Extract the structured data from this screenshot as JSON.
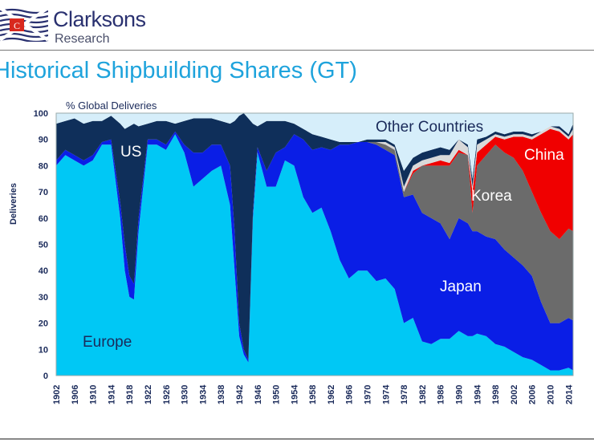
{
  "header": {
    "brand": "Clarksons",
    "brand_sub": "Research",
    "logo_letter": "C",
    "title": "Historical Shipbuilding Shares (GT)"
  },
  "chart_data": {
    "type": "area",
    "stacked": true,
    "title": "Historical Shipbuilding Shares (GT)",
    "subtitle": "% Global Deliveries",
    "ylabel": "Deliveries",
    "xlabel": "",
    "ylim": [
      0,
      100
    ],
    "xlim": [
      1902,
      2015
    ],
    "yticks": [
      0,
      10,
      20,
      30,
      40,
      50,
      60,
      70,
      80,
      90,
      100
    ],
    "xticks": [
      1902,
      1906,
      1910,
      1914,
      1918,
      1922,
      1926,
      1930,
      1934,
      1938,
      1942,
      1946,
      1950,
      1954,
      1958,
      1962,
      1966,
      1970,
      1974,
      1978,
      1982,
      1986,
      1990,
      1994,
      1998,
      2002,
      2006,
      2010,
      2014
    ],
    "grid": false,
    "x": [
      1902,
      1904,
      1906,
      1908,
      1910,
      1912,
      1914,
      1916,
      1917,
      1918,
      1919,
      1920,
      1922,
      1924,
      1926,
      1928,
      1930,
      1932,
      1934,
      1936,
      1938,
      1940,
      1941,
      1942,
      1943,
      1944,
      1945,
      1946,
      1948,
      1950,
      1952,
      1954,
      1956,
      1958,
      1960,
      1962,
      1964,
      1966,
      1968,
      1970,
      1972,
      1974,
      1976,
      1978,
      1980,
      1982,
      1984,
      1986,
      1988,
      1990,
      1992,
      1993,
      1994,
      1996,
      1998,
      2000,
      2002,
      2004,
      2006,
      2008,
      2010,
      2012,
      2014,
      2015
    ],
    "series": [
      {
        "name": "Europe",
        "color": "#00c8f5",
        "label_color": "#1a2a5a",
        "values": [
          80,
          84,
          82,
          80,
          82,
          88,
          88,
          60,
          40,
          30,
          29,
          55,
          88,
          88,
          86,
          92,
          85,
          72,
          75,
          78,
          80,
          65,
          40,
          15,
          8,
          5,
          60,
          85,
          72,
          72,
          82,
          80,
          68,
          62,
          64,
          55,
          44,
          37,
          40,
          40,
          36,
          37,
          33,
          20,
          22,
          13,
          12,
          14,
          14,
          17,
          15,
          15,
          16,
          15,
          12,
          11,
          9,
          7,
          6,
          4,
          2,
          2,
          3,
          2
        ]
      },
      {
        "name": "Japan",
        "color": "#0a1ee6",
        "label_color": "#ffffff",
        "values": [
          2,
          2,
          2,
          2,
          2,
          1,
          2,
          6,
          10,
          8,
          6,
          5,
          2,
          2,
          2,
          1,
          3,
          13,
          10,
          10,
          8,
          15,
          15,
          5,
          2,
          1,
          2,
          2,
          6,
          13,
          5,
          12,
          22,
          24,
          23,
          31,
          44,
          51,
          49,
          49,
          52,
          49,
          51,
          48,
          47,
          49,
          48,
          44,
          38,
          43,
          43,
          40,
          39,
          38,
          40,
          37,
          36,
          35,
          32,
          24,
          18,
          18,
          19,
          19
        ]
      },
      {
        "name": "Korea",
        "color": "#6b6b6b",
        "label_color": "#ffffff",
        "values": [
          0,
          0,
          0,
          0,
          0,
          0,
          0,
          0,
          0,
          0,
          0,
          0,
          0,
          0,
          0,
          0,
          0,
          0,
          0,
          0,
          0,
          0,
          0,
          0,
          0,
          0,
          0,
          0,
          0,
          0,
          0,
          0,
          0,
          0,
          0,
          0,
          0,
          0,
          0,
          0,
          1,
          2,
          2,
          2,
          8,
          18,
          20,
          22,
          28,
          25,
          26,
          7,
          25,
          31,
          36,
          37,
          38,
          36,
          32,
          34,
          35,
          32,
          34,
          34
        ]
      },
      {
        "name": "China",
        "color": "#f00000",
        "label_color": "#ffffff",
        "values": [
          0,
          0,
          0,
          0,
          0,
          0,
          0,
          0,
          0,
          0,
          0,
          0,
          0,
          0,
          0,
          0,
          0,
          0,
          0,
          0,
          0,
          0,
          0,
          0,
          0,
          0,
          0,
          0,
          0,
          0,
          0,
          0,
          0,
          0,
          0,
          0,
          0,
          0,
          0,
          0,
          0,
          0,
          0,
          0,
          1,
          0,
          1,
          2,
          1,
          1,
          0,
          8,
          5,
          4,
          3,
          5,
          8,
          13,
          20,
          30,
          39,
          41,
          34,
          37
        ]
      },
      {
        "name": "",
        "color": "#d9d9d9",
        "label_color": "#000000",
        "values": [
          0,
          0,
          0,
          0,
          0,
          0,
          0,
          0,
          0,
          0,
          0,
          0,
          0,
          0,
          0,
          0,
          0,
          0,
          0,
          0,
          0,
          0,
          0,
          0,
          0,
          0,
          0,
          0,
          0,
          0,
          0,
          0,
          0,
          0,
          0,
          0,
          0,
          0,
          0,
          0,
          0,
          1,
          1,
          2,
          2,
          2,
          2,
          2,
          3,
          4,
          3,
          2,
          3,
          2,
          1,
          1,
          1,
          1,
          1,
          1,
          1,
          1,
          1,
          2
        ]
      },
      {
        "name": "US",
        "color": "#0f2f5a",
        "label_color": "#ffffff",
        "values": [
          14,
          11,
          14,
          14,
          13,
          8,
          9,
          30,
          44,
          57,
          61,
          35,
          6,
          7,
          9,
          3,
          9,
          13,
          13,
          10,
          9,
          16,
          42,
          79,
          90,
          92,
          34,
          8,
          19,
          12,
          10,
          4,
          4,
          6,
          4,
          4,
          1,
          1,
          0,
          1,
          1,
          1,
          1,
          6,
          3,
          3,
          3,
          3,
          2,
          0,
          1,
          3,
          2,
          1,
          1,
          1,
          1,
          1,
          1,
          0,
          0,
          1,
          1,
          2
        ]
      },
      {
        "name": "Other Countries",
        "color": "#d6eefa",
        "label_color": "#1a2a5a",
        "values": "remainder to 100"
      }
    ]
  }
}
